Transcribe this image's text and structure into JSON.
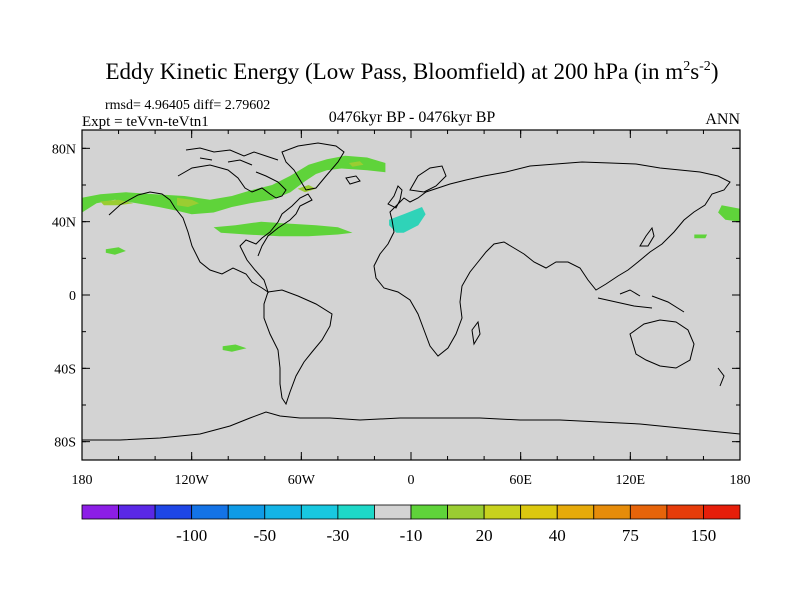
{
  "title": {
    "main": "Eddy Kinetic Energy (Low Pass, Bloomfield) at 200 hPa (in m",
    "sup1": "2",
    "mid": "s",
    "sup2": "-2",
    "close": ")"
  },
  "stats": "rmsd= 4.96405 diff= 2.79602",
  "expt": "Expt = teVvn-teVtn1",
  "period": "0476kyr BP - 0476kyr BP",
  "season": "ANN",
  "colors": {
    "land_ocean": "#d3d3d3",
    "pos_green": "#5fd33a",
    "pos_yellowgreen": "#9acd32",
    "neg_cyan": "#2fd3b8",
    "coast": "#000000"
  },
  "chart_data": {
    "type": "heatmap",
    "projection": "cylindrical-equidistant",
    "xlim": [
      -180,
      180
    ],
    "ylim": [
      -90,
      90
    ],
    "x_ticks": [
      {
        "value": -180,
        "label": "180"
      },
      {
        "value": -120,
        "label": "120W"
      },
      {
        "value": -60,
        "label": "60W"
      },
      {
        "value": 0,
        "label": "0"
      },
      {
        "value": 60,
        "label": "60E"
      },
      {
        "value": 120,
        "label": "120E"
      },
      {
        "value": 180,
        "label": "180"
      }
    ],
    "y_ticks": [
      {
        "value": 80,
        "label": "80N"
      },
      {
        "value": 40,
        "label": "40N"
      },
      {
        "value": 0,
        "label": "0"
      },
      {
        "value": -40,
        "label": "40S"
      },
      {
        "value": -80,
        "label": "80S"
      }
    ],
    "colorbar": {
      "colors": [
        "#8c1ee6",
        "#5a28e6",
        "#1e46e6",
        "#1473e6",
        "#0f9be6",
        "#14b4e6",
        "#18c8e0",
        "#1ed8c8",
        "#d3d3d3",
        "#5fd33a",
        "#9acd32",
        "#c8d21e",
        "#dcc80f",
        "#e6aa0a",
        "#e68c0a",
        "#e6640a",
        "#e63c0a",
        "#e61e0a"
      ],
      "labels": [
        {
          "boundary": 2,
          "text": "-100"
        },
        {
          "boundary": 4,
          "text": "-50"
        },
        {
          "boundary": 6,
          "text": "-30"
        },
        {
          "boundary": 8,
          "text": "-10"
        },
        {
          "boundary": 10,
          "text": "20"
        },
        {
          "boundary": 12,
          "text": "40"
        },
        {
          "boundary": 14,
          "text": "75"
        },
        {
          "boundary": 16,
          "text": "150"
        }
      ]
    },
    "regions": [
      {
        "name": "north-pacific-green",
        "color": "#5fd33a",
        "points": [
          [
            -180,
            45
          ],
          [
            -172,
            50
          ],
          [
            -162,
            52
          ],
          [
            -150,
            50
          ],
          [
            -138,
            48
          ],
          [
            -128,
            46
          ],
          [
            -120,
            44
          ],
          [
            -108,
            45
          ],
          [
            -98,
            48
          ],
          [
            -88,
            50
          ],
          [
            -76,
            52
          ],
          [
            -66,
            56
          ],
          [
            -58,
            62
          ],
          [
            -52,
            66
          ],
          [
            -46,
            68
          ],
          [
            -38,
            69
          ],
          [
            -24,
            68
          ],
          [
            -14,
            67
          ],
          [
            -14,
            72
          ],
          [
            -24,
            75
          ],
          [
            -36,
            76
          ],
          [
            -46,
            74
          ],
          [
            -56,
            71
          ],
          [
            -66,
            65
          ],
          [
            -76,
            60
          ],
          [
            -88,
            57
          ],
          [
            -98,
            54
          ],
          [
            -110,
            52
          ],
          [
            -124,
            54
          ],
          [
            -140,
            55
          ],
          [
            -156,
            56
          ],
          [
            -170,
            55
          ],
          [
            -180,
            53
          ]
        ]
      },
      {
        "name": "subtropical-atlantic-green",
        "color": "#5fd33a",
        "points": [
          [
            -108,
            37
          ],
          [
            -96,
            38
          ],
          [
            -82,
            40
          ],
          [
            -68,
            39
          ],
          [
            -52,
            38
          ],
          [
            -40,
            37
          ],
          [
            -32,
            34
          ],
          [
            -40,
            33
          ],
          [
            -56,
            32
          ],
          [
            -72,
            32
          ],
          [
            -90,
            33
          ],
          [
            -104,
            34
          ]
        ]
      },
      {
        "name": "pacific-small-green",
        "color": "#5fd33a",
        "points": [
          [
            -167,
            25
          ],
          [
            -160,
            26
          ],
          [
            -156,
            24
          ],
          [
            -162,
            22
          ],
          [
            -167,
            23
          ]
        ]
      },
      {
        "name": "pacific-yellowgreen",
        "color": "#9acd32",
        "points": [
          [
            -170,
            51
          ],
          [
            -160,
            52
          ],
          [
            -152,
            50
          ],
          [
            -160,
            49
          ],
          [
            -168,
            49
          ]
        ]
      },
      {
        "name": "america-yellowgreen",
        "color": "#9acd32",
        "points": [
          [
            -128,
            53
          ],
          [
            -120,
            52
          ],
          [
            -116,
            50
          ],
          [
            -122,
            48
          ],
          [
            -128,
            49
          ]
        ]
      },
      {
        "name": "atlantic-yellowgreen",
        "color": "#9acd32",
        "points": [
          [
            -62,
            58
          ],
          [
            -56,
            60
          ],
          [
            -52,
            58
          ],
          [
            -58,
            56
          ]
        ]
      },
      {
        "name": "greenland-yellowgreen",
        "color": "#9acd32",
        "points": [
          [
            -34,
            72
          ],
          [
            -28,
            73
          ],
          [
            -26,
            71
          ],
          [
            -32,
            70
          ]
        ]
      },
      {
        "name": "southern-green",
        "color": "#5fd33a",
        "points": [
          [
            -103,
            -28
          ],
          [
            -96,
            -27
          ],
          [
            -90,
            -29
          ],
          [
            -98,
            -31
          ],
          [
            -103,
            -30
          ]
        ]
      },
      {
        "name": "east-pacific-green",
        "color": "#5fd33a",
        "points": [
          [
            170,
            49
          ],
          [
            180,
            47
          ],
          [
            180,
            40
          ],
          [
            172,
            41
          ],
          [
            168,
            45
          ]
        ]
      },
      {
        "name": "japan-small-green",
        "color": "#5fd33a",
        "points": [
          [
            155,
            33
          ],
          [
            162,
            33
          ],
          [
            161,
            31
          ],
          [
            155,
            31
          ]
        ]
      },
      {
        "name": "iberia-cyan",
        "color": "#2fd3b8",
        "points": [
          [
            -12,
            41
          ],
          [
            -4,
            44
          ],
          [
            6,
            48
          ],
          [
            8,
            44
          ],
          [
            4,
            38
          ],
          [
            -4,
            34
          ],
          [
            -8,
            34
          ],
          [
            -12,
            38
          ]
        ]
      }
    ]
  }
}
